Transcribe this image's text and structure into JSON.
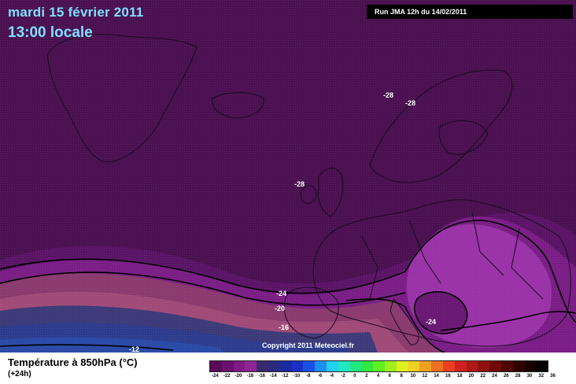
{
  "header": {
    "date": "mardi 15 février 2011",
    "time": "13:00 locale",
    "run": "Run JMA 12h du 14/02/2011"
  },
  "copyright": "Copyright 2011 Meteociel.fr",
  "contour_labels": [
    {
      "text": "-28",
      "name": "label-28-scandinavia-west"
    },
    {
      "text": "-28",
      "name": "label-28-scandinavia-east"
    },
    {
      "text": "-28",
      "name": "label-28-atlantic"
    },
    {
      "text": "-24",
      "name": "label-24-west"
    },
    {
      "text": "-20",
      "name": "label-20"
    },
    {
      "text": "-16",
      "name": "label-16"
    },
    {
      "text": "-12",
      "name": "label-12"
    },
    {
      "text": "-24",
      "name": "label-24-east"
    }
  ],
  "legend": {
    "title": "Température à 850hPa (°C)",
    "subtitle": "(+24h)",
    "colors": [
      "#5a0a5a",
      "#6c1070",
      "#7e1a84",
      "#902496",
      "#3a2a6e",
      "#2a2a80",
      "#1a2aa0",
      "#1a30c8",
      "#1a50e8",
      "#1a90f0",
      "#20d0f0",
      "#20e8c0",
      "#20e880",
      "#30e840",
      "#60f020",
      "#a0f020",
      "#e0f020",
      "#f0d020",
      "#f0a020",
      "#f07020",
      "#e84020",
      "#d02020",
      "#b01818",
      "#901010",
      "#700808",
      "#500404",
      "#300000",
      "#180000",
      "#080000"
    ],
    "ticks": [
      "-24",
      "-22",
      "-20",
      "-18",
      "-16",
      "-14",
      "-12",
      "-10",
      "-8",
      "-6",
      "-4",
      "-2",
      "0",
      "2",
      "4",
      "6",
      "8",
      "10",
      "12",
      "14",
      "16",
      "18",
      "20",
      "22",
      "24",
      "26",
      "28",
      "30",
      "32"
    ],
    "tick_last": "36"
  }
}
